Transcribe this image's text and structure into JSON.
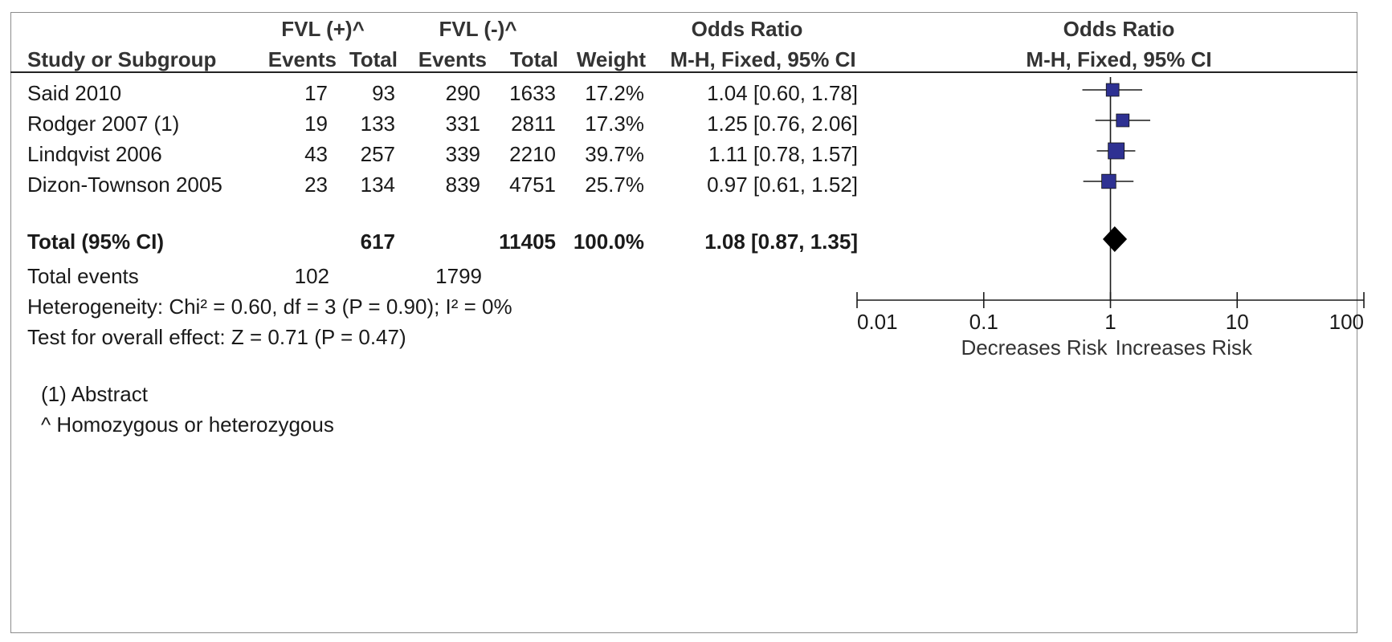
{
  "header": {
    "group1": "FVL (+)^",
    "group2": "FVL (-)^",
    "or_title": "Odds Ratio",
    "or_plot_title": "Odds Ratio",
    "study_col": "Study or Subgroup",
    "events1": "Events",
    "total1": "Total",
    "events2": "Events",
    "total2": "Total",
    "weight": "Weight",
    "method": "M-H, Fixed, 95% CI",
    "method_plot": "M-H, Fixed, 95% CI"
  },
  "studies": [
    {
      "name": "Said 2010",
      "e1": "17",
      "t1": "93",
      "e2": "290",
      "t2": "1633",
      "weight": "17.2%",
      "or_text": "1.04 [0.60, 1.78]"
    },
    {
      "name": "Rodger 2007 (1)",
      "e1": "19",
      "t1": "133",
      "e2": "331",
      "t2": "2811",
      "weight": "17.3%",
      "or_text": "1.25 [0.76, 2.06]"
    },
    {
      "name": "Lindqvist 2006",
      "e1": "43",
      "t1": "257",
      "e2": "339",
      "t2": "2210",
      "weight": "39.7%",
      "or_text": "1.11 [0.78, 1.57]"
    },
    {
      "name": "Dizon-Townson 2005",
      "e1": "23",
      "t1": "134",
      "e2": "839",
      "t2": "4751",
      "weight": "25.7%",
      "or_text": "0.97 [0.61, 1.52]"
    }
  ],
  "total": {
    "label": "Total (95% CI)",
    "t1": "617",
    "t2": "11405",
    "weight": "100.0%",
    "or_text": "1.08 [0.87, 1.35]"
  },
  "total_events": {
    "label": "Total events",
    "e1": "102",
    "e2": "1799"
  },
  "heterogeneity": "Heterogeneity: Chi² = 0.60, df = 3 (P = 0.90); I² = 0%",
  "overall_effect": "Test for overall effect: Z = 0.71 (P = 0.47)",
  "footnotes": [
    "(1) Abstract",
    "^ Homozygous or heterozygous"
  ],
  "axis": {
    "scale": "log",
    "ticks": [
      0.01,
      0.1,
      1,
      10,
      100
    ],
    "tick_labels": [
      "0.01",
      "0.1",
      "1",
      "10",
      "100"
    ],
    "left_label": "Decreases Risk",
    "right_label": "Increases Risk"
  },
  "colors": {
    "study_marker": "#2e3192",
    "summary_marker": "#000000"
  },
  "chart_data": {
    "type": "forest",
    "x_scale": "log",
    "xlim": [
      0.01,
      100
    ],
    "null_line": 1,
    "studies": [
      {
        "name": "Said 2010",
        "or": 1.04,
        "ci": [
          0.6,
          1.78
        ],
        "weight": 17.2
      },
      {
        "name": "Rodger 2007 (1)",
        "or": 1.25,
        "ci": [
          0.76,
          2.06
        ],
        "weight": 17.3
      },
      {
        "name": "Lindqvist 2006",
        "or": 1.11,
        "ci": [
          0.78,
          1.57
        ],
        "weight": 39.7
      },
      {
        "name": "Dizon-Townson 2005",
        "or": 0.97,
        "ci": [
          0.61,
          1.52
        ],
        "weight": 25.7
      }
    ],
    "summary": {
      "name": "Total (95% CI)",
      "or": 1.08,
      "ci": [
        0.87,
        1.35
      ]
    }
  }
}
